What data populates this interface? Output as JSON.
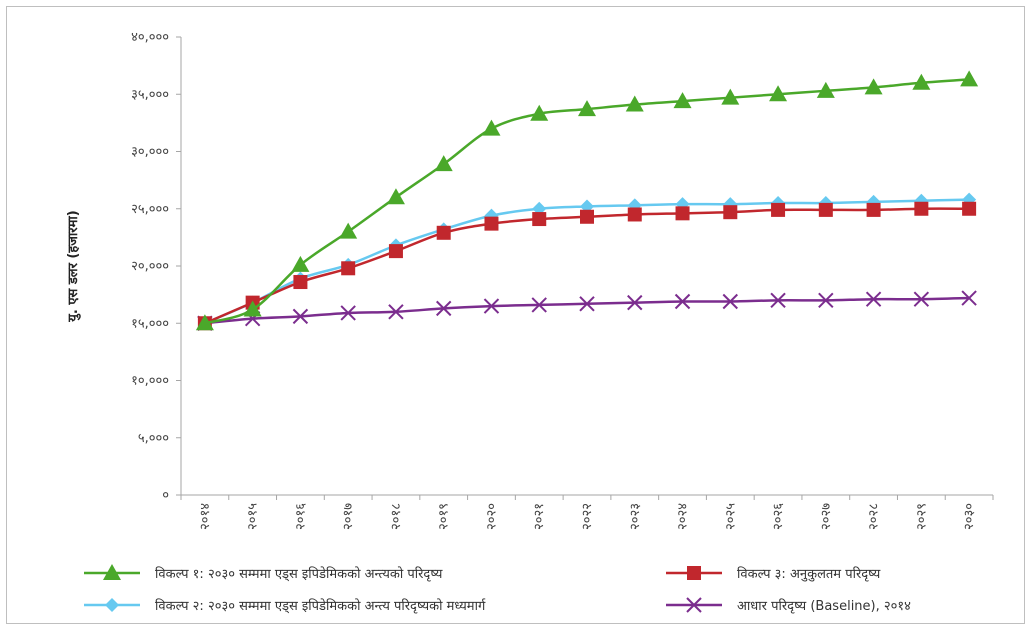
{
  "chart_data": {
    "type": "line",
    "ylabel": "यु. एस डलर (हजारमा)",
    "xlabel": "",
    "ylim": [
      0,
      40000
    ],
    "yticks": [
      0,
      5000,
      10000,
      15000,
      20000,
      25000,
      30000,
      35000,
      40000
    ],
    "ytick_labels": [
      "०",
      "५,०००",
      "१०,०००",
      "१५,०००",
      "२०,०००",
      "२५,०००",
      "३०,०००",
      "३५,०००",
      "४०,०००"
    ],
    "categories": [
      "२०१४",
      "२०१५",
      "२०१६",
      "२०१७",
      "२०१८",
      "२०१९",
      "२०२०",
      "२०२१",
      "२०२२",
      "२०२३",
      "२०२४",
      "२०२५",
      "२०२६",
      "२०२७",
      "२०२८",
      "२०२९",
      "२०३०"
    ],
    "grid": false,
    "legend_position": "bottom",
    "series": [
      {
        "name": "विकल्प १: २०३० सम्ममा एड्स इपिडेमिकको अन्त्यको परिदृष्य",
        "color": "#4aa82a",
        "marker": "triangle",
        "values": [
          15000,
          16200,
          20100,
          23000,
          26000,
          28900,
          32000,
          33300,
          33700,
          34100,
          34400,
          34700,
          35000,
          35300,
          35600,
          36000,
          36300
        ]
      },
      {
        "name": "विकल्प २: २०३० सम्ममा एड्स इपिडेमिकको अन्त्य परिदृष्यको मध्यमार्ग",
        "color": "#66c9f0",
        "marker": "diamond",
        "values": [
          15000,
          16800,
          18900,
          20100,
          21800,
          23200,
          24400,
          25000,
          25200,
          25300,
          25400,
          25400,
          25500,
          25500,
          25600,
          25700,
          25800
        ]
      },
      {
        "name": "विकल्प ३: अनुकुलतम परिदृष्य",
        "color": "#c1272d",
        "marker": "square",
        "values": [
          15000,
          16800,
          18600,
          19800,
          21300,
          22900,
          23700,
          24100,
          24300,
          24500,
          24600,
          24700,
          24900,
          24900,
          24900,
          25000,
          25000
        ]
      },
      {
        "name": "आधार परिदृष्य (Baseline), २०१४",
        "color": "#7b2d8e",
        "marker": "x",
        "values": [
          15000,
          15400,
          15600,
          15900,
          16000,
          16300,
          16500,
          16600,
          16700,
          16800,
          16900,
          16900,
          17000,
          17000,
          17100,
          17100,
          17200
        ]
      }
    ]
  }
}
